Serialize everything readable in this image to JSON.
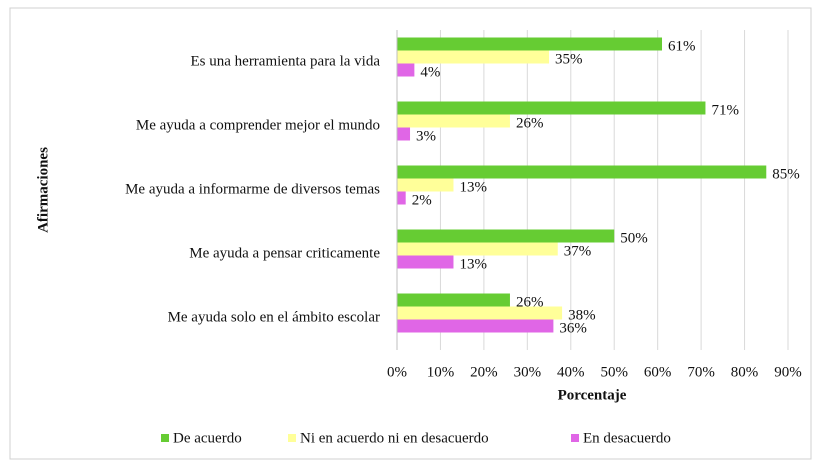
{
  "chart_data": {
    "type": "hbar",
    "xlabel": "Porcentaje",
    "ylabel": "Afirmaciones",
    "categories": [
      "Es una herramienta para la vida",
      "Me ayuda a comprender mejor el mundo",
      "Me ayuda a informarme de diversos temas",
      "Me ayuda a pensar criticamente",
      "Me ayuda solo en el ámbito escolar"
    ],
    "series": [
      {
        "name": "De acuerdo",
        "color": "#66cc33",
        "values": [
          61,
          71,
          85,
          50,
          26
        ],
        "value_labels": [
          "61%",
          "71%",
          "85%",
          "50%",
          "26%"
        ]
      },
      {
        "name": "Ni en acuerdo ni en desacuerdo",
        "color": "#ffff99",
        "values": [
          35,
          26,
          13,
          37,
          38
        ],
        "value_labels": [
          "35%",
          "26%",
          "13%",
          "37%",
          "38%"
        ]
      },
      {
        "name": "En desacuerdo",
        "color": "#e066e6",
        "values": [
          4,
          3,
          2,
          13,
          36
        ],
        "value_labels": [
          "4%",
          "3%",
          "2%",
          "13%",
          "36%"
        ]
      }
    ],
    "xlim": [
      0,
      90
    ],
    "xticks": [
      {
        "value": 0,
        "label": "0%"
      },
      {
        "value": 10,
        "label": "10%"
      },
      {
        "value": 20,
        "label": "20%"
      },
      {
        "value": 30,
        "label": "30%"
      },
      {
        "value": 40,
        "label": "40%"
      },
      {
        "value": 50,
        "label": "50%"
      },
      {
        "value": 60,
        "label": "60%"
      },
      {
        "value": 70,
        "label": "70%"
      },
      {
        "value": 80,
        "label": "80%"
      },
      {
        "value": 90,
        "label": "90%"
      }
    ],
    "grid": true,
    "legend": "bottom"
  }
}
